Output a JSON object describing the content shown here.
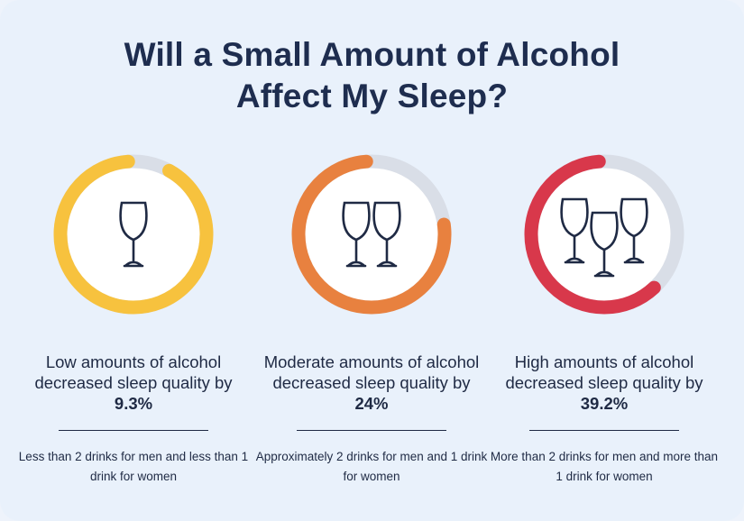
{
  "title": {
    "line1": "Will a Small Amount of Alcohol",
    "line2": "Affect My Sleep?"
  },
  "colors": {
    "background": "#e9f1fb",
    "track": "#d9dee7",
    "low": "#f7c23e",
    "moderate": "#e8813f",
    "high": "#d8384b",
    "wine": "#ef7f95",
    "glass_outline": "#1f2a44"
  },
  "groups": [
    {
      "caption_pre": "Low amounts of alcohol decreased sleep quality by ",
      "percent": "9.3%",
      "note": "Less than 2 drinks for men and less than 1 drink for women",
      "ring_fraction": 0.907,
      "glasses": 1,
      "icon": "wine-glass-icon"
    },
    {
      "caption_pre": "Moderate amounts of alcohol decreased sleep quality by ",
      "percent": "24%",
      "note": "Approximately 2 drinks for men and 1 drink for women",
      "ring_fraction": 0.76,
      "glasses": 2,
      "icon": "wine-glass-icon"
    },
    {
      "caption_pre": "High amounts of alcohol decreased sleep quality by ",
      "percent": "39.2%",
      "note": "More than 2 drinks for men and more than 1 drink for women",
      "ring_fraction": 0.608,
      "glasses": 3,
      "icon": "wine-glass-icon"
    }
  ]
}
